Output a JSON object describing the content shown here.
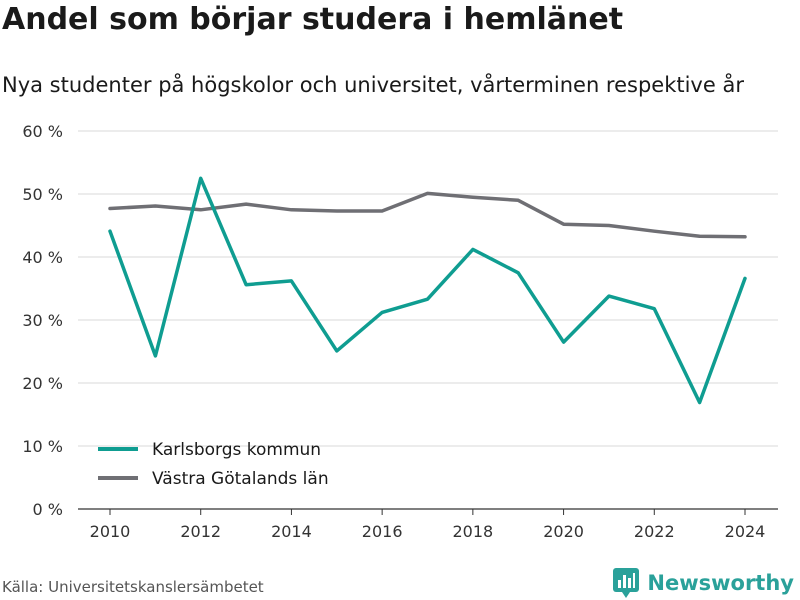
{
  "title": "Andel som börjar studera i hemlänet",
  "subtitle": "Nya studenter på högskolor och universitet, vårterminen respektive år",
  "source": "Källa: Universitetskanslersämbetet",
  "brand": {
    "name": "Newsworthy",
    "icon": "bar-chart-logo-icon",
    "color": "#2aa19a"
  },
  "chart_data": {
    "type": "line",
    "x": [
      2010,
      2011,
      2012,
      2013,
      2014,
      2015,
      2016,
      2017,
      2018,
      2019,
      2020,
      2021,
      2022,
      2023,
      2024
    ],
    "series": [
      {
        "name": "Karlsborgs kommun",
        "color": "#0f9d91",
        "values": [
          44.1,
          24.3,
          52.5,
          35.6,
          36.2,
          25.1,
          31.2,
          33.3,
          41.2,
          37.5,
          26.5,
          33.8,
          31.8,
          16.9,
          36.6
        ]
      },
      {
        "name": "Västra Götalands län",
        "color": "#6f6f74",
        "values": [
          47.7,
          48.1,
          47.5,
          48.4,
          47.5,
          47.3,
          47.3,
          50.1,
          49.5,
          49.0,
          45.2,
          45.0,
          44.1,
          43.3,
          43.2
        ]
      }
    ],
    "ylim": [
      0,
      60
    ],
    "yticks": [
      0,
      10,
      20,
      30,
      40,
      50,
      60
    ],
    "ytick_labels": [
      "0 %",
      "10 %",
      "20 %",
      "30 %",
      "40 %",
      "50 %",
      "60 %"
    ],
    "xticks": [
      2010,
      2012,
      2014,
      2016,
      2018,
      2020,
      2022,
      2024
    ],
    "xtick_labels": [
      "2010",
      "2012",
      "2014",
      "2016",
      "2018",
      "2020",
      "2022",
      "2024"
    ],
    "grid": true,
    "legend_position": "bottom-left"
  }
}
